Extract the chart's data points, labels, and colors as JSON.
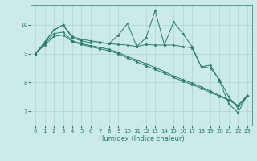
{
  "xlabel": "Humidex (Indice chaleur)",
  "background_color": "#cceaea",
  "grid_color": "#aad4d4",
  "line_color": "#2a7a6a",
  "xlim": [
    -0.5,
    23.5
  ],
  "ylim": [
    6.5,
    10.7
  ],
  "yticks": [
    7,
    8,
    9,
    10
  ],
  "xticks": [
    0,
    1,
    2,
    3,
    4,
    5,
    6,
    7,
    8,
    9,
    10,
    11,
    12,
    13,
    14,
    15,
    16,
    17,
    18,
    19,
    20,
    21,
    22,
    23
  ],
  "series": {
    "line1": [
      9.0,
      9.4,
      9.82,
      10.0,
      9.6,
      9.5,
      9.45,
      9.4,
      9.35,
      9.65,
      10.05,
      9.25,
      9.55,
      10.5,
      9.3,
      10.1,
      9.7,
      9.25,
      8.55,
      8.6,
      8.05,
      7.25,
      6.95,
      7.55
    ],
    "line2": [
      9.0,
      9.4,
      9.82,
      10.0,
      9.55,
      9.45,
      9.38,
      9.38,
      9.35,
      9.32,
      9.3,
      9.25,
      9.32,
      9.3,
      9.3,
      9.3,
      9.25,
      9.2,
      8.55,
      8.5,
      8.1,
      7.5,
      7.1,
      7.55
    ],
    "line3": [
      9.0,
      9.35,
      9.7,
      9.75,
      9.45,
      9.35,
      9.28,
      9.22,
      9.15,
      9.05,
      8.9,
      8.78,
      8.65,
      8.52,
      8.38,
      8.22,
      8.1,
      7.98,
      7.85,
      7.7,
      7.55,
      7.4,
      7.2,
      7.55
    ],
    "line4": [
      9.0,
      9.3,
      9.6,
      9.65,
      9.42,
      9.32,
      9.24,
      9.17,
      9.1,
      9.0,
      8.85,
      8.72,
      8.58,
      8.45,
      8.32,
      8.17,
      8.05,
      7.93,
      7.8,
      7.65,
      7.52,
      7.38,
      7.2,
      7.55
    ]
  }
}
